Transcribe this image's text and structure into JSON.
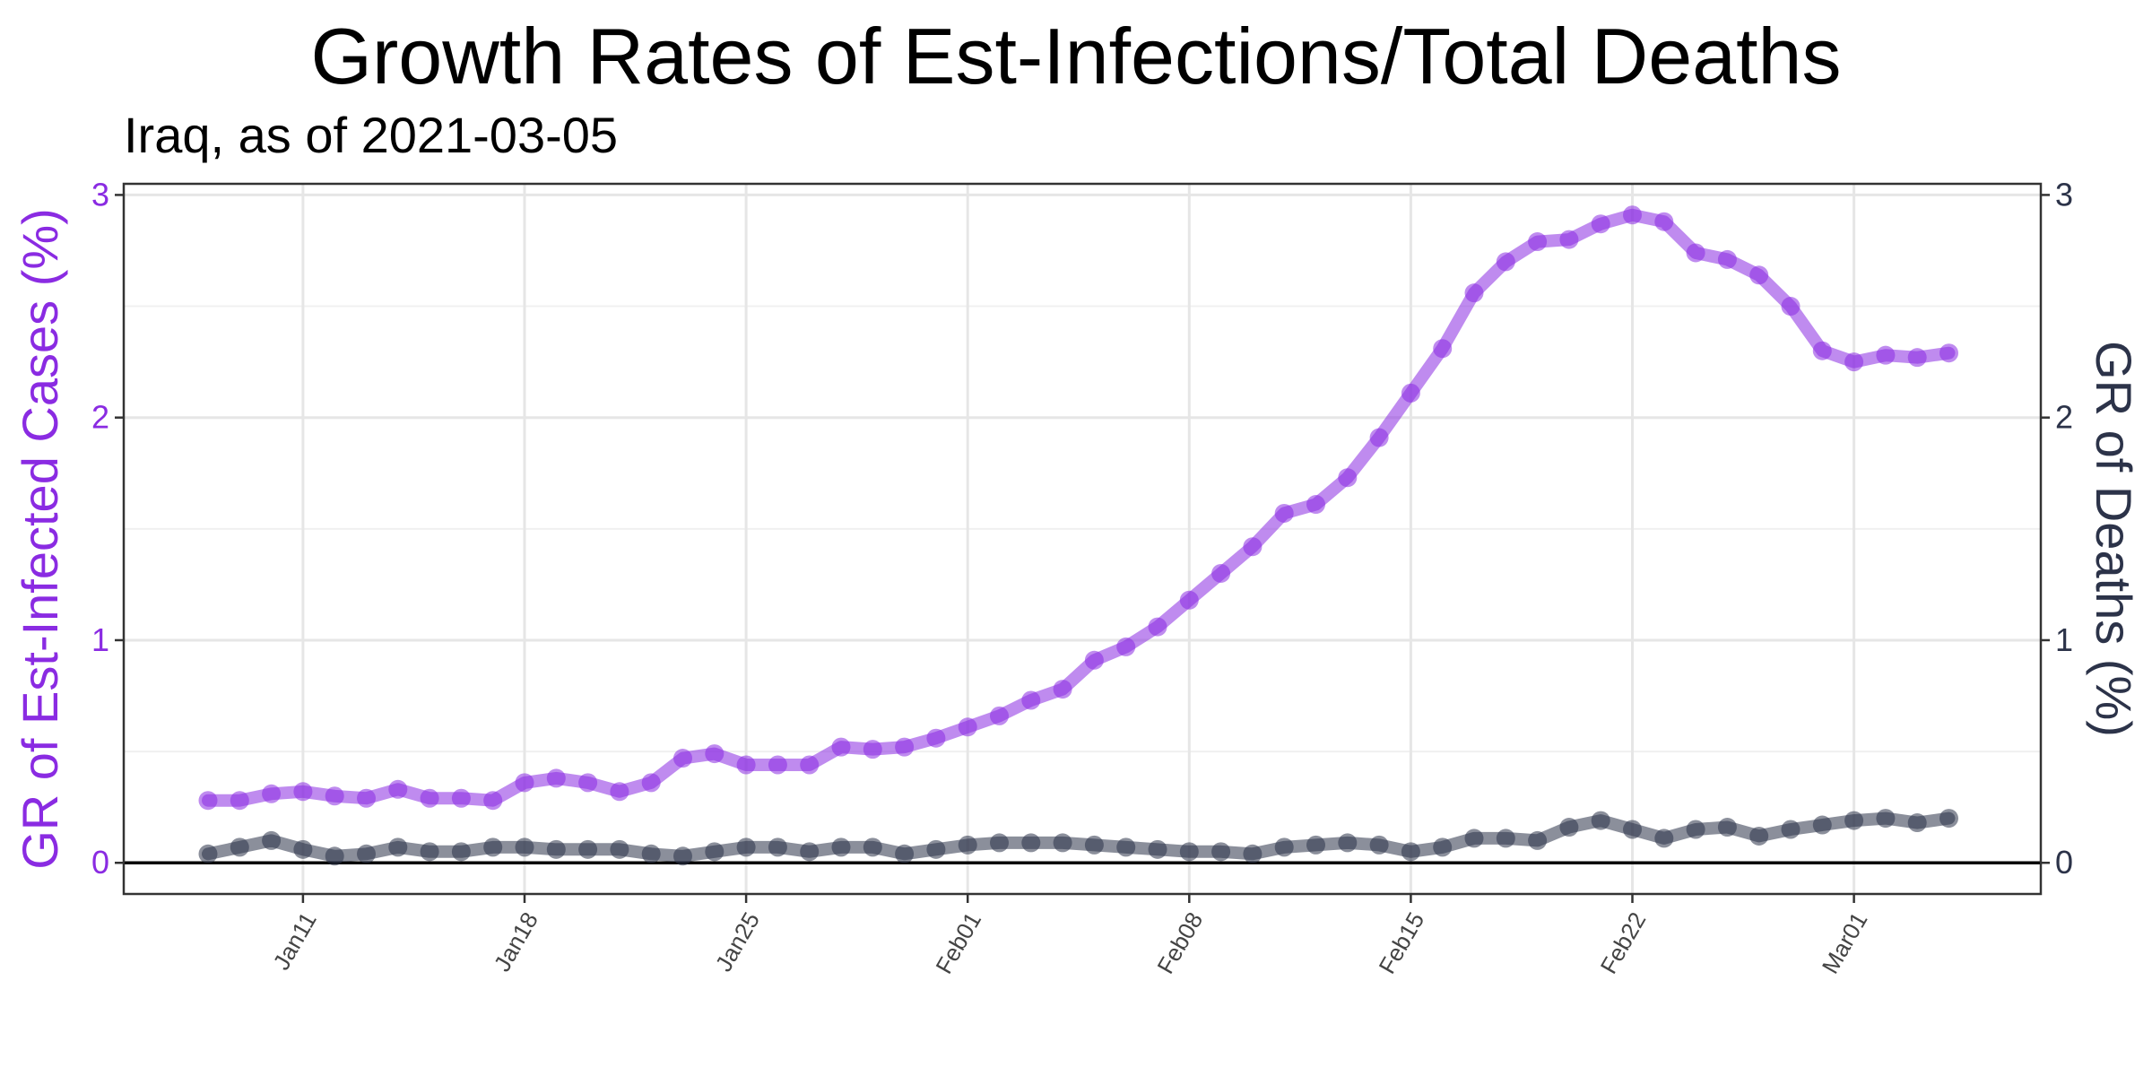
{
  "chart_data": {
    "type": "line",
    "title": "Growth Rates of Est-Infections/Total Deaths",
    "subtitle": "Iraq, as of 2021-03-05",
    "ylabel_left": "GR of Est-Infected Cases (%)",
    "ylabel_right": "GR of Deaths (%)",
    "ylim": [
      -0.14,
      3.05
    ],
    "yticks": [
      0,
      1,
      2,
      3
    ],
    "x_start": "2021-01-08",
    "xticks": [
      {
        "label": "Jan11",
        "date": "2021-01-11"
      },
      {
        "label": "Jan18",
        "date": "2021-01-18"
      },
      {
        "label": "Jan25",
        "date": "2021-01-25"
      },
      {
        "label": "Feb01",
        "date": "2021-02-01"
      },
      {
        "label": "Feb08",
        "date": "2021-02-08"
      },
      {
        "label": "Feb15",
        "date": "2021-02-15"
      },
      {
        "label": "Feb22",
        "date": "2021-02-22"
      },
      {
        "label": "Mar01",
        "date": "2021-03-01"
      }
    ],
    "grid": true,
    "series": [
      {
        "axis": "left",
        "color": "#8a2be2",
        "values": [
          0.28,
          0.28,
          0.31,
          0.32,
          0.3,
          0.29,
          0.33,
          0.29,
          0.29,
          0.28,
          0.36,
          0.38,
          0.36,
          0.32,
          0.36,
          0.47,
          0.49,
          0.44,
          0.44,
          0.44,
          0.52,
          0.51,
          0.52,
          0.56,
          0.61,
          0.66,
          0.73,
          0.78,
          0.91,
          0.97,
          1.06,
          1.18,
          1.3,
          1.42,
          1.57,
          1.61,
          1.73,
          1.91,
          2.11,
          2.31,
          2.56,
          2.7,
          2.79,
          2.8,
          2.87,
          2.91,
          2.88,
          2.74,
          2.71,
          2.64,
          2.5,
          2.3,
          2.25,
          2.28,
          2.27,
          2.29
        ]
      },
      {
        "axis": "right",
        "color": "#2c3349",
        "values": [
          0.04,
          0.07,
          0.1,
          0.06,
          0.03,
          0.04,
          0.07,
          0.05,
          0.05,
          0.07,
          0.07,
          0.06,
          0.06,
          0.06,
          0.04,
          0.03,
          0.05,
          0.07,
          0.07,
          0.05,
          0.07,
          0.07,
          0.04,
          0.06,
          0.08,
          0.09,
          0.09,
          0.09,
          0.08,
          0.07,
          0.06,
          0.05,
          0.05,
          0.04,
          0.07,
          0.08,
          0.09,
          0.08,
          0.05,
          0.07,
          0.11,
          0.11,
          0.1,
          0.16,
          0.19,
          0.15,
          0.11,
          0.15,
          0.16,
          0.12,
          0.15,
          0.17,
          0.19,
          0.2,
          0.18,
          0.2
        ]
      }
    ]
  }
}
